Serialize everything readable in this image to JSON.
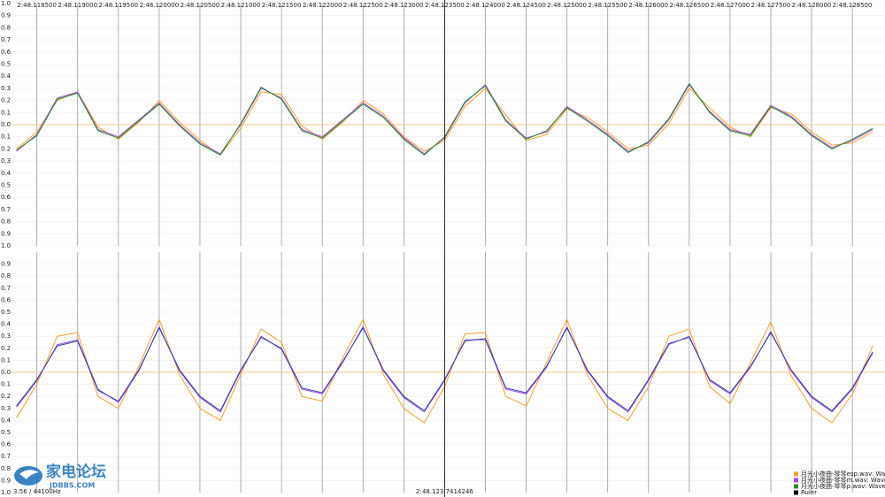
{
  "chart_data": [
    {
      "type": "line",
      "x": [
        168.11825,
        168.1185,
        168.11875,
        168.119,
        168.11925,
        168.1195,
        168.11975,
        168.12,
        168.12025,
        168.1205,
        168.12075,
        168.121,
        168.12125,
        168.1215,
        168.12175,
        168.122,
        168.12225,
        168.1225,
        168.12275,
        168.123,
        168.12325,
        168.1235,
        168.12375,
        168.124,
        168.12425,
        168.1245,
        168.12475,
        168.125,
        168.12525,
        168.1255,
        168.12575,
        168.126,
        168.12625,
        168.1265,
        168.12675,
        168.127,
        168.12725,
        168.1275,
        168.12775,
        168.128,
        168.12825,
        168.1285,
        168.12875
      ],
      "xlim": [
        168.1182,
        168.1289
      ],
      "xticks": [
        {
          "value": 168.1185,
          "label": "2:48.118500"
        },
        {
          "value": 168.119,
          "label": "2:48.119000"
        },
        {
          "value": 168.1195,
          "label": "2:48.119500"
        },
        {
          "value": 168.12,
          "label": "2:48.120000"
        },
        {
          "value": 168.1205,
          "label": "2:48.120500"
        },
        {
          "value": 168.121,
          "label": "2:48.121000"
        },
        {
          "value": 168.1215,
          "label": "2:48.121500"
        },
        {
          "value": 168.122,
          "label": "2:48.122000"
        },
        {
          "value": 168.1225,
          "label": "2:48.122500"
        },
        {
          "value": 168.123,
          "label": "2:48.123000"
        },
        {
          "value": 168.1235,
          "label": "2:48.123500"
        },
        {
          "value": 168.124,
          "label": "2:48.124000"
        },
        {
          "value": 168.1245,
          "label": "2:48.124500"
        },
        {
          "value": 168.125,
          "label": "2:48.125000"
        },
        {
          "value": 168.1255,
          "label": "2:48.125500"
        },
        {
          "value": 168.126,
          "label": "2:48.126000"
        },
        {
          "value": 168.1265,
          "label": "2:48.126500"
        },
        {
          "value": 168.127,
          "label": "2:48.127000"
        },
        {
          "value": 168.1275,
          "label": "2:48.127500"
        },
        {
          "value": 168.128,
          "label": "2:48.128000"
        },
        {
          "value": 168.1285,
          "label": "2:48.128500"
        }
      ],
      "ylim": [
        -1,
        1
      ],
      "yticks": [
        {
          "value": 1,
          "label": "1.0"
        },
        0.9,
        0.8,
        0.7,
        0.6,
        0.5,
        0.4,
        0.3,
        0.2,
        0.1,
        {
          "value": 0,
          "label": "0.0"
        },
        {
          "value": -0.1,
          "label": "0.1"
        },
        {
          "value": -0.2,
          "label": "0.2"
        },
        {
          "value": -0.3,
          "label": "0.3"
        },
        {
          "value": -0.4,
          "label": "0.4"
        },
        {
          "value": -0.5,
          "label": "0.5"
        },
        {
          "value": -0.6,
          "label": "0.6"
        },
        {
          "value": -0.7,
          "label": "0.7"
        },
        {
          "value": -0.8,
          "label": "0.8"
        },
        {
          "value": -0.9,
          "label": "0.9"
        },
        {
          "value": -1,
          "label": "1.0"
        }
      ],
      "grid": true,
      "zero_line_color": "#f5c98a",
      "series": [
        {
          "name": "月光小夜曲-琴琴esp.wav: Waveform",
          "color": "#f0a030",
          "values": [
            -0.2,
            -0.06,
            0.2,
            0.27,
            -0.02,
            -0.12,
            0.02,
            0.2,
            0.02,
            -0.13,
            -0.25,
            -0.03,
            0.27,
            0.25,
            -0.01,
            -0.12,
            0.02,
            0.2,
            0.09,
            -0.1,
            -0.22,
            -0.13,
            0.15,
            0.3,
            0.08,
            -0.13,
            -0.08,
            0.13,
            0.06,
            -0.06,
            -0.2,
            -0.17,
            0.01,
            0.3,
            0.14,
            -0.02,
            -0.1,
            0.14,
            0.09,
            -0.06,
            -0.17,
            -0.15,
            -0.06
          ]
        },
        {
          "name": "月光小夜曲-琴琴m.wav: Waveform",
          "color": "#a050e0",
          "values": [
            -0.22,
            -0.08,
            0.22,
            0.27,
            -0.04,
            -0.1,
            0.04,
            0.18,
            0,
            -0.15,
            -0.24,
            0,
            0.3,
            0.22,
            -0.04,
            -0.1,
            0.04,
            0.18,
            0.07,
            -0.11,
            -0.24,
            -0.11,
            0.18,
            0.33,
            0.04,
            -0.11,
            -0.06,
            0.15,
            0.04,
            -0.08,
            -0.22,
            -0.15,
            0.04,
            0.33,
            0.11,
            -0.04,
            -0.08,
            0.16,
            0.07,
            -0.08,
            -0.19,
            -0.13,
            -0.04
          ]
        },
        {
          "name": "月光小夜曲-琴琴p.wav: Waveform",
          "color": "#2a8a2a",
          "values": [
            -0.21,
            -0.09,
            0.21,
            0.26,
            -0.05,
            -0.11,
            0.03,
            0.17,
            -0.01,
            -0.16,
            -0.25,
            0.01,
            0.31,
            0.21,
            -0.05,
            -0.11,
            0.03,
            0.17,
            0.06,
            -0.12,
            -0.25,
            -0.1,
            0.19,
            0.32,
            0.03,
            -0.12,
            -0.05,
            0.14,
            0.03,
            -0.09,
            -0.23,
            -0.14,
            0.05,
            0.34,
            0.1,
            -0.05,
            -0.09,
            0.15,
            0.06,
            -0.09,
            -0.2,
            -0.12,
            -0.03
          ]
        }
      ],
      "ruler": {
        "name": "Ruler",
        "color": "#000000",
        "x": 168.1235,
        "label": "2:48.123 7414246"
      }
    },
    {
      "type": "line",
      "x": [
        168.11825,
        168.1185,
        168.11875,
        168.119,
        168.11925,
        168.1195,
        168.11975,
        168.12,
        168.12025,
        168.1205,
        168.12075,
        168.121,
        168.12125,
        168.1215,
        168.12175,
        168.122,
        168.12225,
        168.1225,
        168.12275,
        168.123,
        168.12325,
        168.1235,
        168.12375,
        168.124,
        168.12425,
        168.1245,
        168.12475,
        168.125,
        168.12525,
        168.1255,
        168.12575,
        168.126,
        168.12625,
        168.1265,
        168.12675,
        168.127,
        168.12725,
        168.1275,
        168.12775,
        168.128,
        168.12825,
        168.1285,
        168.12875
      ],
      "xlim": [
        168.1182,
        168.1289
      ],
      "ylim": [
        -1,
        1
      ],
      "yticks": [
        0.9,
        0.8,
        0.7,
        0.6,
        0.5,
        0.4,
        0.3,
        0.2,
        0.1,
        {
          "value": 0,
          "label": "0.0"
        },
        {
          "value": -0.1,
          "label": "0.1"
        },
        {
          "value": -0.2,
          "label": "0.2"
        },
        {
          "value": -0.3,
          "label": "0.3"
        },
        {
          "value": -0.4,
          "label": "0.4"
        },
        {
          "value": -0.5,
          "label": "0.5"
        },
        {
          "value": -0.6,
          "label": "0.6"
        },
        {
          "value": -0.7,
          "label": "0.7"
        },
        {
          "value": -0.8,
          "label": "0.8"
        },
        {
          "value": -0.9,
          "label": "0.9"
        },
        {
          "value": -1,
          "label": "1.0"
        }
      ],
      "grid": true,
      "zero_line_color": "#f5c98a",
      "series": [
        {
          "color": "#f0a030",
          "values": [
            -0.38,
            -0.1,
            0.3,
            0.33,
            -0.2,
            -0.3,
            0.05,
            0.44,
            -0.02,
            -0.3,
            -0.4,
            -0.02,
            0.36,
            0.25,
            -0.2,
            -0.24,
            0.12,
            0.44,
            -0.02,
            -0.3,
            -0.42,
            -0.12,
            0.32,
            0.33,
            -0.2,
            -0.28,
            0.08,
            0.44,
            -0.02,
            -0.3,
            -0.4,
            -0.12,
            0.3,
            0.36,
            -0.12,
            -0.26,
            0.08,
            0.42,
            -0.03,
            -0.3,
            -0.42,
            -0.18,
            0.22
          ]
        },
        {
          "color": "#a050e0",
          "values": [
            -0.29,
            -0.07,
            0.23,
            0.27,
            -0.14,
            -0.25,
            0.01,
            0.38,
            0.01,
            -0.21,
            -0.33,
            0.01,
            0.3,
            0.19,
            -0.14,
            -0.18,
            0.08,
            0.38,
            0.01,
            -0.21,
            -0.33,
            -0.07,
            0.27,
            0.27,
            -0.14,
            -0.18,
            0.04,
            0.38,
            0.01,
            -0.21,
            -0.33,
            -0.07,
            0.23,
            0.3,
            -0.07,
            -0.18,
            0.04,
            0.34,
            0.01,
            -0.21,
            -0.33,
            -0.14,
            0.16
          ]
        },
        {
          "color": "#3040a0",
          "values": [
            -0.28,
            -0.06,
            0.22,
            0.26,
            -0.15,
            -0.24,
            0.02,
            0.37,
            0.02,
            -0.2,
            -0.32,
            0.02,
            0.29,
            0.2,
            -0.13,
            -0.17,
            0.09,
            0.37,
            0.02,
            -0.2,
            -0.32,
            -0.06,
            0.26,
            0.28,
            -0.13,
            -0.17,
            0.05,
            0.37,
            0.02,
            -0.2,
            -0.32,
            -0.06,
            0.24,
            0.29,
            -0.06,
            -0.17,
            0.05,
            0.33,
            0.02,
            -0.2,
            -0.32,
            -0.13,
            0.17
          ]
        }
      ]
    }
  ],
  "status": "3:56 / 44100Hz",
  "watermark": {
    "title": "家电论坛",
    "subtitle": "JDBBS.COM"
  }
}
